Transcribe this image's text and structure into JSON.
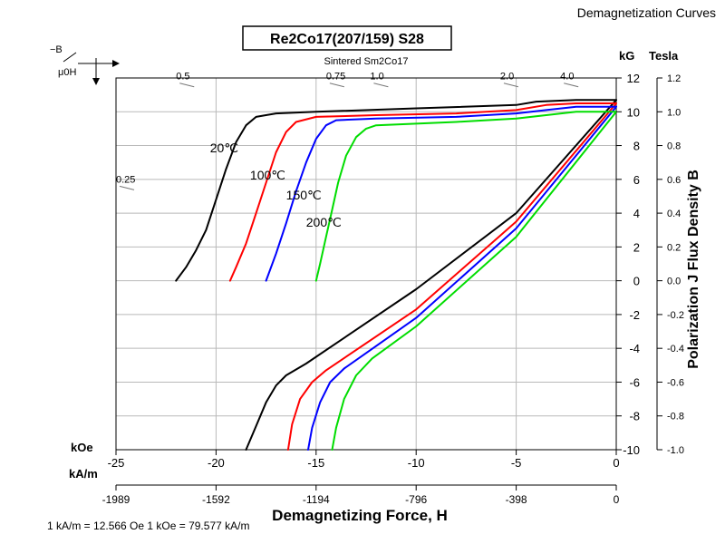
{
  "header": {
    "caption": "Demagnetization Curves"
  },
  "chart_data": {
    "type": "line",
    "title": "Re2Co17(207/159) S28",
    "subtitle": "Sintered Sm2Co17",
    "xlabel": "Demagnetizing Force, H",
    "ylabel": "Polarization J Flux Density B",
    "x_unit_koe": "kOe",
    "x_unit_kam": "kA/m",
    "y_unit_kg": "kG",
    "y_unit_tesla": "Tesla",
    "corner_label_b": "−B",
    "corner_label_h": "μ0H",
    "conversion_note": "1 kA/m = 12.566 Oe 1 kOe = 79.577 kA/m",
    "xlim": [
      -25,
      0
    ],
    "ylim": [
      -10,
      12
    ],
    "grid": true,
    "x_ticks_koe": [
      {
        "v": -25,
        "label": "-25"
      },
      {
        "v": -20,
        "label": "-20"
      },
      {
        "v": -15,
        "label": "-15"
      },
      {
        "v": -10,
        "label": "-10"
      },
      {
        "v": -5,
        "label": "-5"
      },
      {
        "v": 0,
        "label": "0"
      }
    ],
    "x_ticks_kam": [
      {
        "v": -25,
        "label": "-1989"
      },
      {
        "v": -20,
        "label": "-1592"
      },
      {
        "v": -15,
        "label": "-1194"
      },
      {
        "v": -10,
        "label": "-796"
      },
      {
        "v": -5,
        "label": "-398"
      },
      {
        "v": 0,
        "label": "0"
      }
    ],
    "y_ticks_kg": [
      {
        "v": 12,
        "label": "12"
      },
      {
        "v": 10,
        "label": "10"
      },
      {
        "v": 8,
        "label": "8"
      },
      {
        "v": 6,
        "label": "6"
      },
      {
        "v": 4,
        "label": "4"
      },
      {
        "v": 2,
        "label": "2"
      },
      {
        "v": 0,
        "label": "0"
      },
      {
        "v": -2,
        "label": "-2"
      },
      {
        "v": -4,
        "label": "-4"
      },
      {
        "v": -6,
        "label": "-6"
      },
      {
        "v": -8,
        "label": "-8"
      },
      {
        "v": -10,
        "label": "-10"
      }
    ],
    "y_ticks_tesla": [
      {
        "v": 12,
        "label": "1.2"
      },
      {
        "v": 10,
        "label": "1.0"
      },
      {
        "v": 8,
        "label": "0.8"
      },
      {
        "v": 6,
        "label": "0.6"
      },
      {
        "v": 4,
        "label": "0.4"
      },
      {
        "v": 2,
        "label": "0.2"
      },
      {
        "v": 0,
        "label": "0.0"
      },
      {
        "v": -2,
        "label": "-0.2"
      },
      {
        "v": -4,
        "label": "-0.4"
      },
      {
        "v": -6,
        "label": "-0.6"
      },
      {
        "v": -8,
        "label": "-0.8"
      },
      {
        "v": -10,
        "label": "-1.0"
      }
    ],
    "permeance_lines": [
      {
        "label": "0.5",
        "x": -22.0,
        "y": 11.8
      },
      {
        "label": "0.75",
        "x": -14.5,
        "y": 11.8
      },
      {
        "label": "1.0",
        "x": -12.3,
        "y": 11.8
      },
      {
        "label": "2.0",
        "x": -5.8,
        "y": 11.8
      },
      {
        "label": "4.0",
        "x": -2.8,
        "y": 11.8
      },
      {
        "label": "0.25",
        "x": -25.0,
        "y": 5.7
      }
    ],
    "series": [
      {
        "name": "20℃",
        "color": "#000000",
        "label_at": [
          -20.3,
          7.6
        ],
        "J": [
          [
            -22.0,
            0.0
          ],
          [
            -21.5,
            0.8
          ],
          [
            -21.0,
            1.8
          ],
          [
            -20.5,
            3.0
          ],
          [
            -20.0,
            4.8
          ],
          [
            -19.5,
            6.6
          ],
          [
            -19.0,
            8.2
          ],
          [
            -18.5,
            9.2
          ],
          [
            -18.0,
            9.7
          ],
          [
            -17.0,
            9.9
          ],
          [
            -15.0,
            10.0
          ],
          [
            -10.0,
            10.2
          ],
          [
            -5.0,
            10.4
          ],
          [
            -4.0,
            10.6
          ],
          [
            -2.0,
            10.7
          ],
          [
            0.0,
            10.7
          ]
        ],
        "B": [
          [
            -18.5,
            -10.0
          ],
          [
            -18.0,
            -8.6
          ],
          [
            -17.5,
            -7.2
          ],
          [
            -17.0,
            -6.2
          ],
          [
            -16.5,
            -5.6
          ],
          [
            -15.5,
            -4.9
          ],
          [
            -10.0,
            -0.5
          ],
          [
            -5.0,
            4.0
          ],
          [
            0.0,
            10.7
          ]
        ]
      },
      {
        "name": "100℃",
        "color": "#ff0000",
        "label_at": [
          -18.3,
          6.0
        ],
        "J": [
          [
            -19.3,
            0.0
          ],
          [
            -19.0,
            0.8
          ],
          [
            -18.5,
            2.2
          ],
          [
            -18.0,
            4.0
          ],
          [
            -17.5,
            5.8
          ],
          [
            -17.0,
            7.6
          ],
          [
            -16.5,
            8.8
          ],
          [
            -16.0,
            9.4
          ],
          [
            -15.0,
            9.7
          ],
          [
            -12.0,
            9.8
          ],
          [
            -8.0,
            9.9
          ],
          [
            -5.0,
            10.1
          ],
          [
            -3.5,
            10.4
          ],
          [
            -2.0,
            10.5
          ],
          [
            0.0,
            10.5
          ]
        ],
        "B": [
          [
            -16.4,
            -10.0
          ],
          [
            -16.2,
            -8.5
          ],
          [
            -15.8,
            -7.0
          ],
          [
            -15.2,
            -6.0
          ],
          [
            -14.5,
            -5.3
          ],
          [
            -10.0,
            -1.7
          ],
          [
            -5.0,
            3.5
          ],
          [
            0.0,
            10.5
          ]
        ]
      },
      {
        "name": "150℃",
        "color": "#0000ff",
        "label_at": [
          -16.5,
          4.8
        ],
        "J": [
          [
            -17.5,
            0.0
          ],
          [
            -17.0,
            1.6
          ],
          [
            -16.5,
            3.4
          ],
          [
            -16.0,
            5.3
          ],
          [
            -15.5,
            7.0
          ],
          [
            -15.0,
            8.4
          ],
          [
            -14.5,
            9.2
          ],
          [
            -14.0,
            9.5
          ],
          [
            -12.0,
            9.6
          ],
          [
            -8.0,
            9.7
          ],
          [
            -5.0,
            9.9
          ],
          [
            -3.5,
            10.1
          ],
          [
            -2.0,
            10.3
          ],
          [
            0.0,
            10.3
          ]
        ],
        "B": [
          [
            -15.4,
            -10.0
          ],
          [
            -15.2,
            -8.7
          ],
          [
            -14.8,
            -7.2
          ],
          [
            -14.3,
            -6.0
          ],
          [
            -13.6,
            -5.2
          ],
          [
            -10.0,
            -2.2
          ],
          [
            -5.0,
            3.1
          ],
          [
            0.0,
            10.3
          ]
        ]
      },
      {
        "name": "200℃",
        "color": "#00dd00",
        "label_at": [
          -15.5,
          3.2
        ],
        "J": [
          [
            -15.0,
            0.0
          ],
          [
            -14.8,
            1.0
          ],
          [
            -14.5,
            2.6
          ],
          [
            -14.2,
            4.2
          ],
          [
            -13.9,
            5.8
          ],
          [
            -13.5,
            7.4
          ],
          [
            -13.0,
            8.5
          ],
          [
            -12.5,
            9.0
          ],
          [
            -12.0,
            9.2
          ],
          [
            -8.0,
            9.4
          ],
          [
            -5.0,
            9.6
          ],
          [
            -3.5,
            9.8
          ],
          [
            -2.0,
            10.0
          ],
          [
            0.0,
            10.0
          ]
        ],
        "B": [
          [
            -14.2,
            -10.0
          ],
          [
            -14.0,
            -8.7
          ],
          [
            -13.6,
            -7.0
          ],
          [
            -13.0,
            -5.6
          ],
          [
            -12.2,
            -4.6
          ],
          [
            -10.0,
            -2.7
          ],
          [
            -5.0,
            2.6
          ],
          [
            0.0,
            10.0
          ]
        ]
      }
    ]
  }
}
